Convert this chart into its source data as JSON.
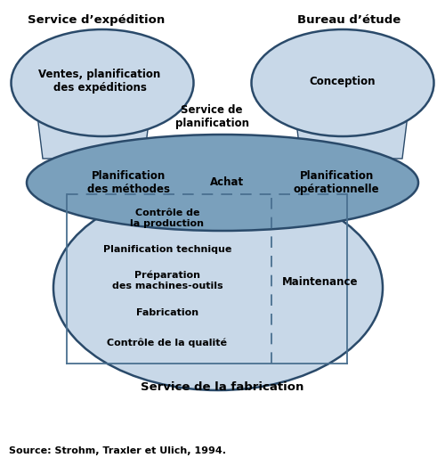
{
  "bg_color": "#ffffff",
  "ellipse_light": "#c8d8e8",
  "ellipse_dark": "#7aa0bc",
  "ellipse_stroke": "#2a4a6a",
  "rect_stroke": "#4a7090",
  "dashed_stroke": "#4a7090",
  "title_top_left": "Service d’expédition",
  "title_top_right": "Bureau d’étude",
  "title_bottom": "Service de la fabrication",
  "source_text": "Source: Strohm, Traxler et Ulich, 1994.",
  "label_ventes": "Ventes, planification\ndes expéditions",
  "label_conception": "Conception",
  "label_planification_service": "Service de\nplanification",
  "label_planification_methodes": "Planification\ndes méthodes",
  "label_achat": "Achat",
  "label_planification_op": "Planification\nopérationnelle",
  "label_controle_prod": "Contrôle de\nla production",
  "label_plan_tech": "Planification technique",
  "label_preparation": "Préparation\ndes machines-outils",
  "label_fabrication": "Fabrication",
  "label_controle_qual": "Contrôle de la qualité",
  "label_maintenance": "Maintenance",
  "fontsize_title": 9.5,
  "fontsize_label": 8.5,
  "fontsize_small": 8.0,
  "fontsize_source": 8.0
}
